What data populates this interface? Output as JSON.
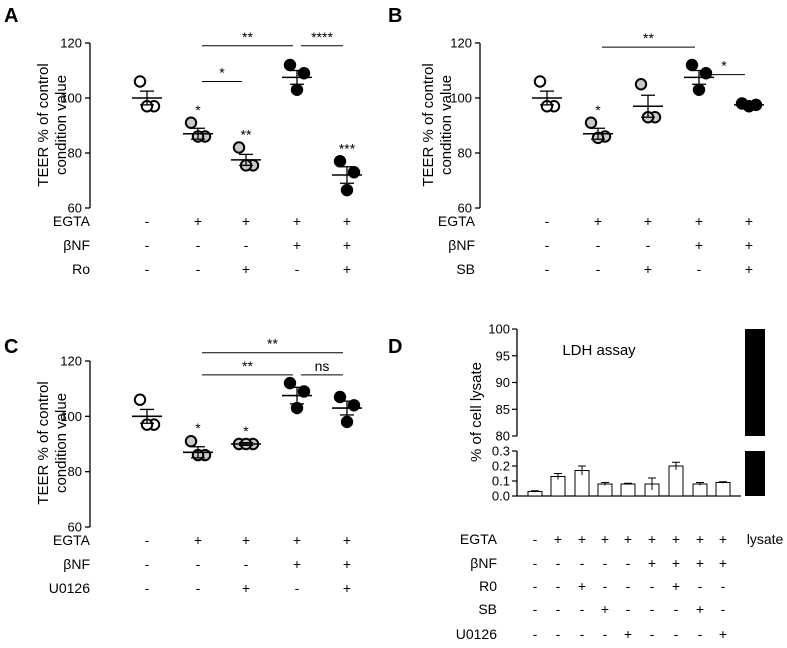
{
  "chart_data": [
    {
      "panel": "A",
      "type": "scatter",
      "ylabel": [
        "TEER % of control",
        "condition value"
      ],
      "ylim": [
        60,
        120
      ],
      "yticks": [
        60,
        80,
        100,
        120
      ],
      "treatments": [
        {
          "name": "EGTA",
          "values": [
            "-",
            "+",
            "+",
            "+",
            "+"
          ]
        },
        {
          "name": "βNF",
          "values": [
            "-",
            "-",
            "-",
            "+",
            "+"
          ]
        },
        {
          "name": "Ro",
          "values": [
            "-",
            "-",
            "+",
            "-",
            "+"
          ]
        }
      ],
      "groups": [
        {
          "mean": 100,
          "sem": 2.5,
          "points": [
            106,
            97,
            97
          ],
          "fill": "#ffffff",
          "sig": ""
        },
        {
          "mean": 87,
          "sem": 2,
          "points": [
            91,
            86,
            86
          ],
          "fill": "#c8c8c8",
          "sig": "*"
        },
        {
          "mean": 77.5,
          "sem": 2,
          "points": [
            82,
            75.5,
            75.5
          ],
          "fill": "#c8c8c8",
          "sig": "**"
        },
        {
          "mean": 107.5,
          "sem": 2.5,
          "points": [
            112,
            109,
            103
          ],
          "fill": "#000000",
          "sig": ""
        },
        {
          "mean": 72,
          "sem": 3,
          "points": [
            77,
            73,
            66.5
          ],
          "fill": "#000000",
          "sig": "***"
        }
      ],
      "brackets": [
        {
          "from": 1,
          "to": 3,
          "y": 119,
          "label": "**"
        },
        {
          "from": 3,
          "to": 4,
          "y": 119,
          "label": "****"
        },
        {
          "from": 1,
          "to": 2,
          "y": 106,
          "label": "*"
        }
      ]
    },
    {
      "panel": "B",
      "type": "scatter",
      "ylabel": [
        "TEER % of control",
        "condition value"
      ],
      "ylim": [
        60,
        120
      ],
      "yticks": [
        60,
        80,
        100,
        120
      ],
      "treatments": [
        {
          "name": "EGTA",
          "values": [
            "-",
            "+",
            "+",
            "+",
            "+"
          ]
        },
        {
          "name": "βNF",
          "values": [
            "-",
            "-",
            "-",
            "+",
            "+"
          ]
        },
        {
          "name": "SB",
          "values": [
            "-",
            "-",
            "+",
            "-",
            "+"
          ]
        }
      ],
      "groups": [
        {
          "mean": 100,
          "sem": 2.5,
          "points": [
            106,
            97,
            97
          ],
          "fill": "#ffffff",
          "sig": ""
        },
        {
          "mean": 87,
          "sem": 2,
          "points": [
            91,
            86,
            85.5
          ],
          "fill": "#c8c8c8",
          "sig": "*"
        },
        {
          "mean": 97,
          "sem": 4,
          "points": [
            105,
            93,
            93
          ],
          "fill": "#c8c8c8",
          "sig": ""
        },
        {
          "mean": 107.5,
          "sem": 2.5,
          "points": [
            112,
            109,
            103
          ],
          "fill": "#000000",
          "sig": ""
        },
        {
          "mean": 97.5,
          "sem": 1,
          "points": [
            98,
            97.5,
            97
          ],
          "fill": "#000000",
          "sig": ""
        }
      ],
      "brackets": [
        {
          "from": 1,
          "to": 3,
          "y": 118.5,
          "label": "**"
        },
        {
          "from": 3,
          "to": 4,
          "y": 108.5,
          "label": "*"
        }
      ]
    },
    {
      "panel": "C",
      "type": "scatter",
      "ylabel": [
        "TEER % of control",
        "condition value"
      ],
      "ylim": [
        60,
        120
      ],
      "yticks": [
        60,
        80,
        100,
        120
      ],
      "treatments": [
        {
          "name": "EGTA",
          "values": [
            "-",
            "+",
            "+",
            "+",
            "+"
          ]
        },
        {
          "name": "βNF",
          "values": [
            "-",
            "-",
            "-",
            "+",
            "+"
          ]
        },
        {
          "name": "U0126",
          "values": [
            "-",
            "-",
            "+",
            "-",
            "+"
          ]
        }
      ],
      "groups": [
        {
          "mean": 100,
          "sem": 2.5,
          "points": [
            106,
            97,
            97
          ],
          "fill": "#ffffff",
          "sig": ""
        },
        {
          "mean": 87,
          "sem": 2,
          "points": [
            91,
            86,
            86
          ],
          "fill": "#c8c8c8",
          "sig": "*"
        },
        {
          "mean": 90,
          "sem": 0.5,
          "points": [
            90,
            90,
            90
          ],
          "fill": "#c8c8c8",
          "sig": "*"
        },
        {
          "mean": 107.5,
          "sem": 3,
          "points": [
            112,
            109,
            103
          ],
          "fill": "#000000",
          "sig": ""
        },
        {
          "mean": 103,
          "sem": 2.5,
          "points": [
            107,
            104,
            98
          ],
          "fill": "#000000",
          "sig": ""
        }
      ],
      "brackets": [
        {
          "from": 1,
          "to": 4,
          "y": 123,
          "label": "**"
        },
        {
          "from": 1,
          "to": 3,
          "y": 115,
          "label": "**"
        },
        {
          "from": 3,
          "to": 4,
          "y": 115,
          "label": "ns"
        }
      ]
    },
    {
      "panel": "D",
      "type": "bar",
      "title": "LDH assay",
      "ylabel": "% of cell lysate",
      "ylim_lower": [
        0,
        0.3
      ],
      "yticks_lower": [
        "0.0",
        "0.1",
        "0.2",
        "0.3"
      ],
      "ylim_upper": [
        80,
        100
      ],
      "yticks_upper": [
        "80",
        "85",
        "90",
        "95",
        "100"
      ],
      "values": [
        0.03,
        0.13,
        0.17,
        0.08,
        0.08,
        0.08,
        0.2,
        0.08,
        0.09,
        100
      ],
      "errors": [
        0.005,
        0.02,
        0.03,
        0.01,
        0.005,
        0.04,
        0.025,
        0.01,
        0.005,
        0
      ],
      "fills": [
        "#ffffff",
        "#ffffff",
        "#ffffff",
        "#ffffff",
        "#ffffff",
        "#ffffff",
        "#ffffff",
        "#ffffff",
        "#ffffff",
        "#000000"
      ],
      "treatments": [
        {
          "name": "EGTA",
          "values": [
            "-",
            "+",
            "+",
            "+",
            "+",
            "+",
            "+",
            "+",
            "+",
            "lysate"
          ]
        },
        {
          "name": "βNF",
          "values": [
            "-",
            "-",
            "-",
            "-",
            "-",
            "+",
            "+",
            "+",
            "+",
            ""
          ]
        },
        {
          "name": "R0",
          "values": [
            "-",
            "-",
            "+",
            "-",
            "-",
            "-",
            "+",
            "-",
            "-",
            ""
          ]
        },
        {
          "name": "SB",
          "values": [
            "-",
            "-",
            "-",
            "+",
            "-",
            "-",
            "-",
            "+",
            "-",
            ""
          ]
        },
        {
          "name": "U0126",
          "values": [
            "-",
            "-",
            "-",
            "-",
            "+",
            "-",
            "-",
            "-",
            "+",
            ""
          ]
        }
      ]
    }
  ]
}
